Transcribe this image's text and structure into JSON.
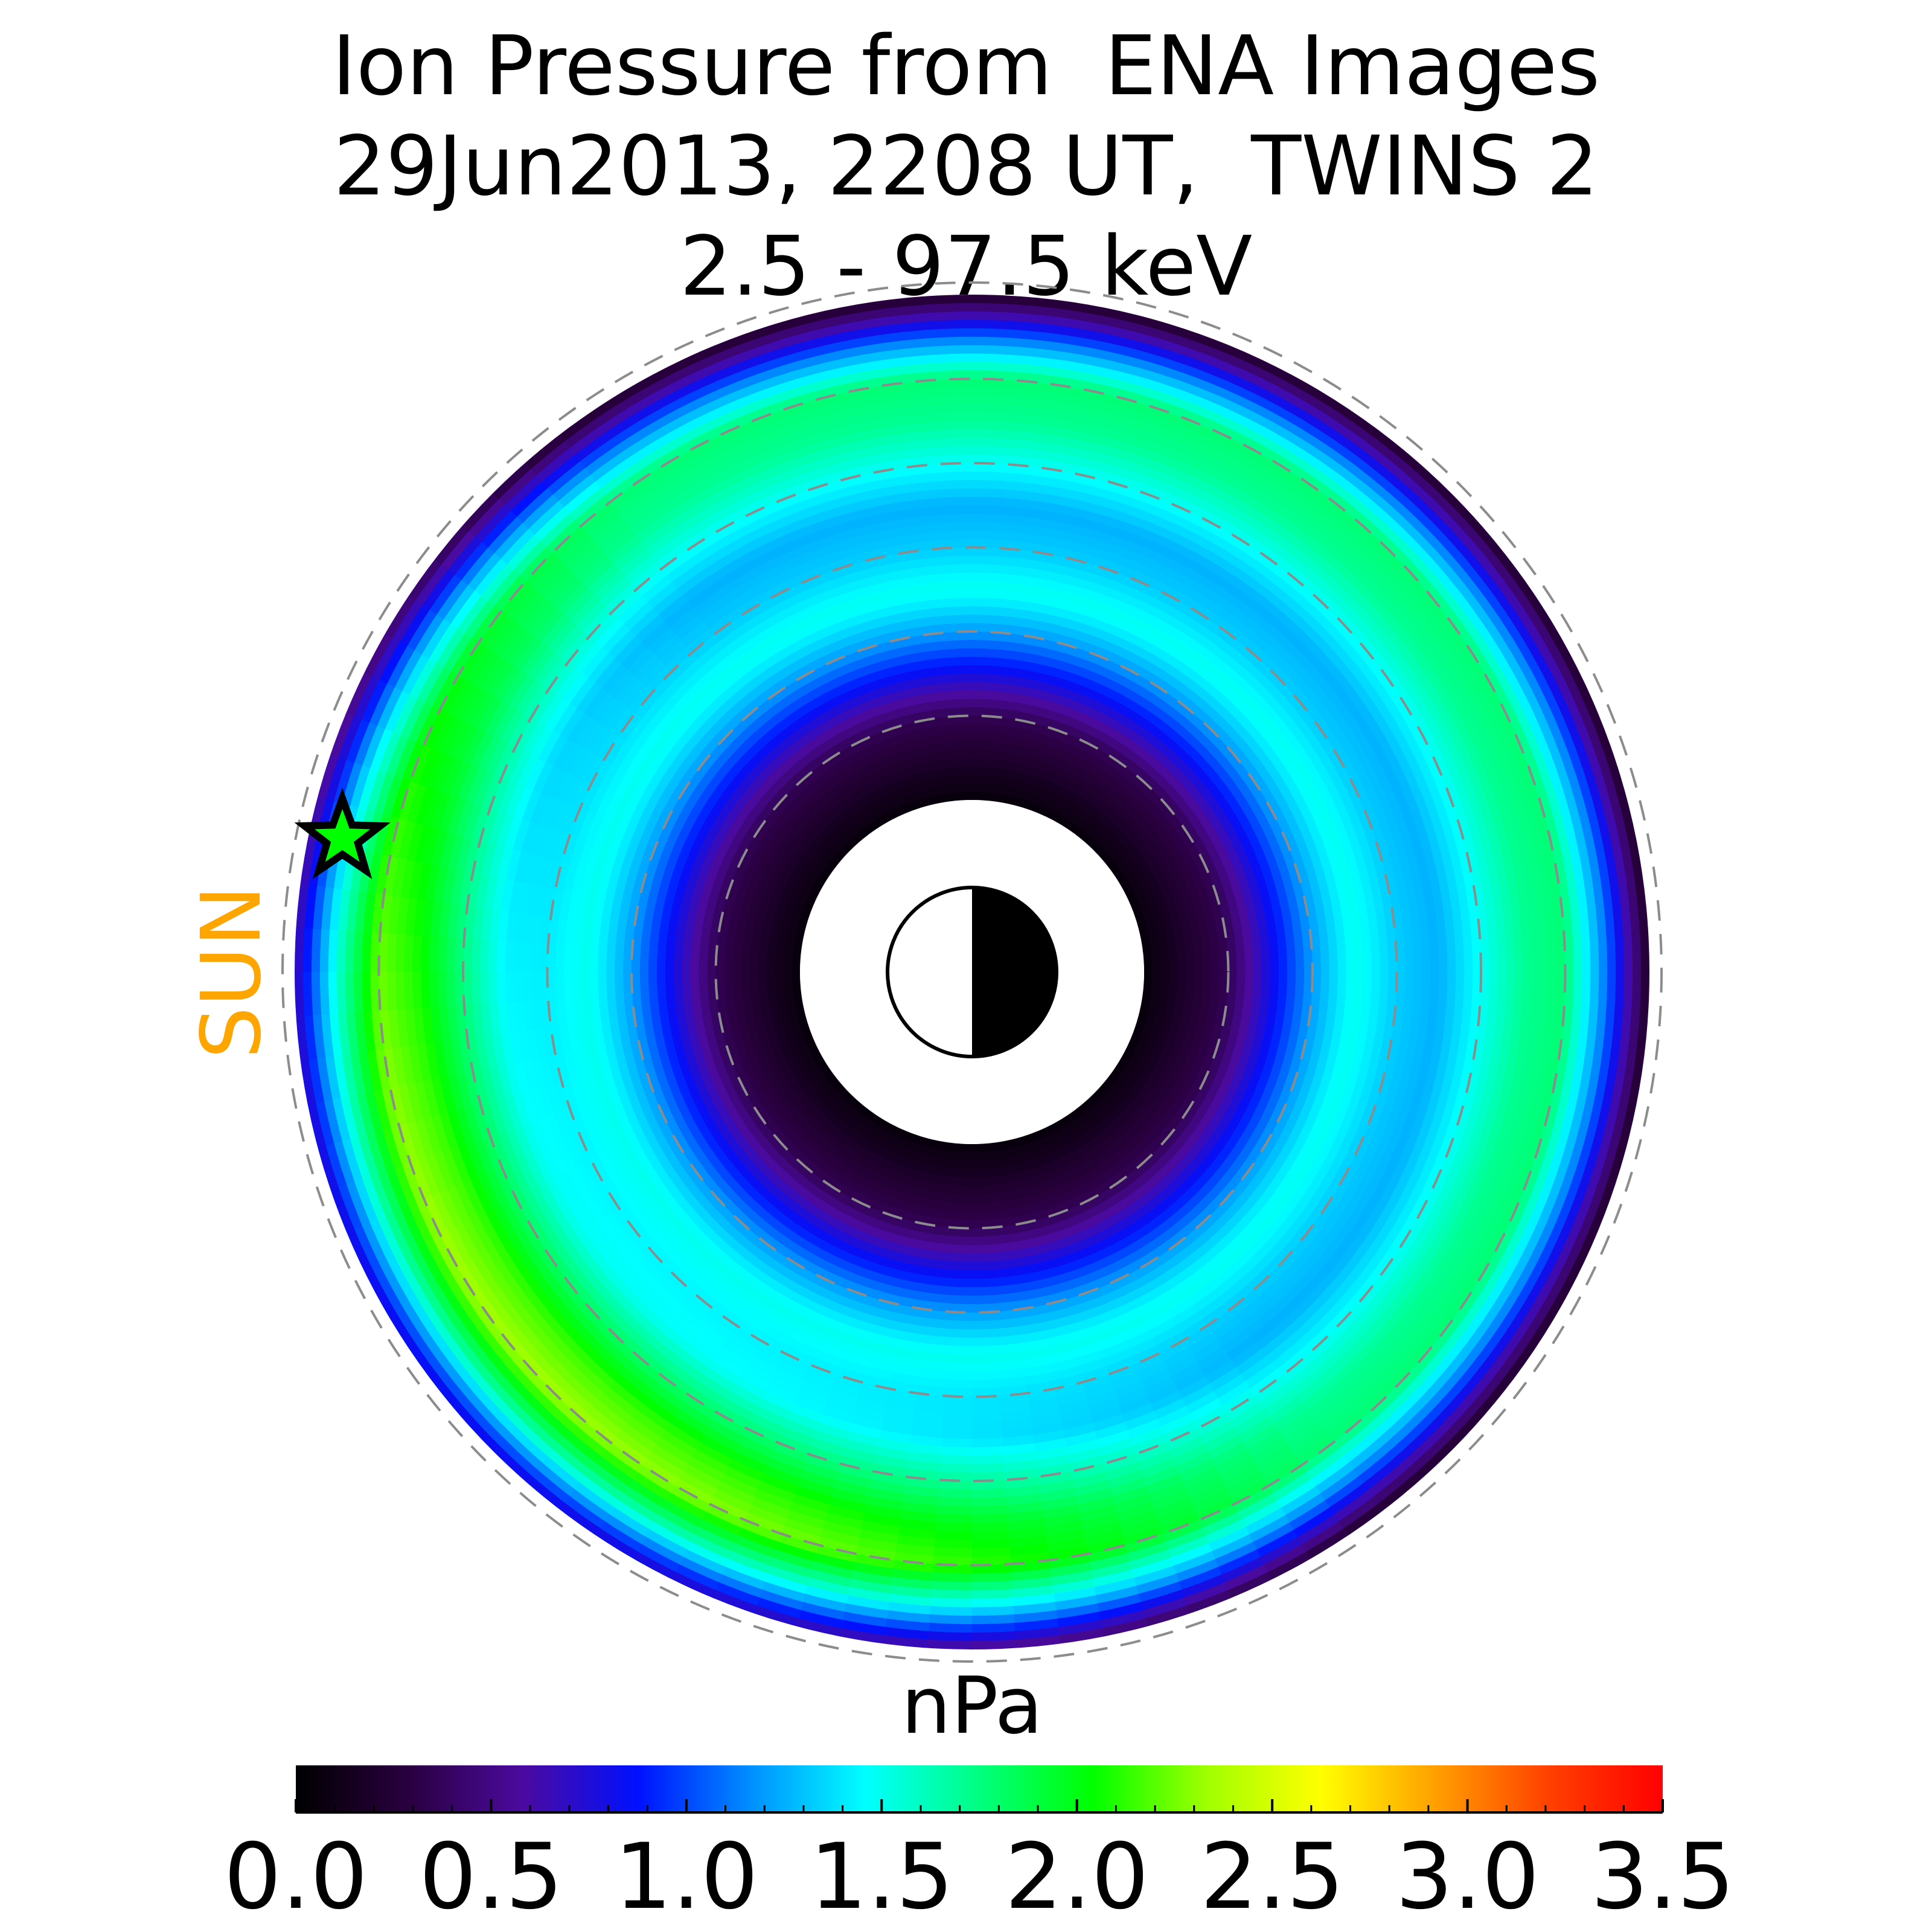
{
  "title": {
    "line1": "Ion Pressure from  ENA Images",
    "line2": "29Jun2013, 2208 UT,  TWINS 2",
    "line3": "2.5 - 97.5 keV"
  },
  "sun_label": "SUN",
  "colorbar": {
    "unit": "nPa",
    "min": 0.0,
    "max": 3.5,
    "ticks": [
      "0.0",
      "0.5",
      "1.0",
      "1.5",
      "2.0",
      "2.5",
      "3.0",
      "3.5"
    ],
    "colormap_stops": [
      "#000000",
      "#2a0040",
      "#4b0aa0",
      "#0010ff",
      "#0090ff",
      "#00ffff",
      "#00ff80",
      "#00ff00",
      "#a0ff00",
      "#ffff00",
      "#ffa000",
      "#ff4000",
      "#ff0000"
    ]
  },
  "chart_data": {
    "type": "heatmap",
    "projection": "polar equatorial plane, sun to the left",
    "quantity": "ion pressure",
    "unit": "nPa",
    "value_range": [
      0.0,
      3.5
    ],
    "radial_extent_RE": [
      2,
      8
    ],
    "dashed_circles_RE": [
      3,
      4,
      5,
      6,
      7,
      8
    ],
    "ring_profile": {
      "radius_RE": [
        2.0,
        3.0,
        3.5,
        4.0,
        4.5,
        5.0,
        5.5,
        6.0,
        6.5,
        7.0,
        7.5,
        8.0
      ],
      "pressure_nPa": [
        0.05,
        0.35,
        0.8,
        1.2,
        1.5,
        1.35,
        1.3,
        1.55,
        1.8,
        1.9,
        1.2,
        0.3
      ]
    },
    "azimuthal_notes": "enhanced pressure (about 1.9-2.0 nPa) on the dusk/pre-noon side lower-left; weaker on dawn side",
    "marker": {
      "symbol": "star",
      "mlt_hours": 11.2,
      "radius_RE": 7.6
    },
    "earth_symbol": "day/night half circle at center (day side white, night side black)"
  }
}
